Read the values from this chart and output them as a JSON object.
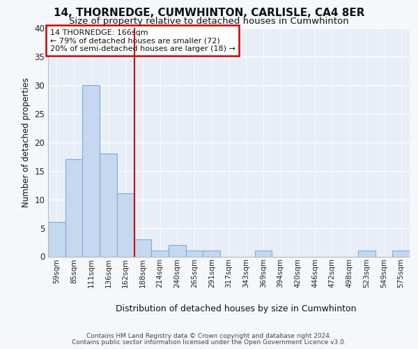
{
  "title1": "14, THORNEDGE, CUMWHINTON, CARLISLE, CA4 8ER",
  "title2": "Size of property relative to detached houses in Cumwhinton",
  "xlabel": "Distribution of detached houses by size in Cumwhinton",
  "ylabel": "Number of detached properties",
  "categories": [
    "59sqm",
    "85sqm",
    "111sqm",
    "136sqm",
    "162sqm",
    "188sqm",
    "214sqm",
    "240sqm",
    "265sqm",
    "291sqm",
    "317sqm",
    "343sqm",
    "369sqm",
    "394sqm",
    "420sqm",
    "446sqm",
    "472sqm",
    "498sqm",
    "523sqm",
    "549sqm",
    "575sqm"
  ],
  "values": [
    6,
    17,
    30,
    18,
    11,
    3,
    1,
    2,
    1,
    1,
    0,
    0,
    1,
    0,
    0,
    0,
    0,
    0,
    1,
    0,
    1
  ],
  "bar_color": "#c5d8f0",
  "bar_edgecolor": "#7aabdb",
  "vline_x": 4.5,
  "vline_color": "#cc0000",
  "annotation_text": "14 THORNEDGE: 166sqm\n← 79% of detached houses are smaller (72)\n20% of semi-detached houses are larger (18) →",
  "annotation_box_edgecolor": "#cc0000",
  "ylim": [
    0,
    40
  ],
  "yticks": [
    0,
    5,
    10,
    15,
    20,
    25,
    30,
    35,
    40
  ],
  "plot_bgcolor": "#e8eef7",
  "grid_color": "#ffffff",
  "fig_bgcolor": "#f5f7fa",
  "footer1": "Contains HM Land Registry data © Crown copyright and database right 2024.",
  "footer2": "Contains public sector information licensed under the Open Government Licence v3.0."
}
